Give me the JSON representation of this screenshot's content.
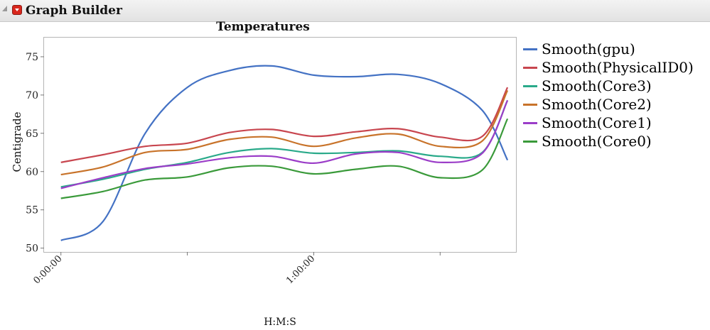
{
  "window": {
    "title": "Graph Builder"
  },
  "chart_data": {
    "type": "line",
    "title": "Temperatures",
    "xlabel": "H:M:S",
    "ylabel": "Centigrade",
    "x_tick_labels": [
      "0:00:00",
      "1:00:00"
    ],
    "y_ticks": [
      50,
      55,
      60,
      65,
      70,
      75
    ],
    "ylim": [
      49.5,
      77.5
    ],
    "xlim_minutes": [
      -4,
      108
    ],
    "grid": false,
    "legend_position": "right",
    "x_minutes": [
      0,
      10,
      20,
      30,
      40,
      50,
      60,
      70,
      80,
      90,
      100,
      106
    ],
    "series": [
      {
        "name": "Smooth(gpu)",
        "color": "#4472c4",
        "values": [
          51.0,
          53.5,
          65.0,
          71.0,
          73.2,
          73.8,
          72.6,
          72.4,
          72.7,
          71.5,
          68.0,
          61.5
        ]
      },
      {
        "name": "Smooth(PhysicalID0)",
        "color": "#c8464f",
        "values": [
          61.2,
          62.2,
          63.3,
          63.7,
          65.1,
          65.5,
          64.6,
          65.2,
          65.6,
          64.5,
          64.6,
          71.0
        ]
      },
      {
        "name": "Smooth(Core3)",
        "color": "#2aaa8a",
        "values": [
          58.0,
          59.0,
          60.3,
          61.2,
          62.5,
          63.0,
          62.4,
          62.5,
          62.7,
          62.0,
          62.5,
          69.3
        ]
      },
      {
        "name": "Smooth(Core2)",
        "color": "#c8732a",
        "values": [
          59.6,
          60.6,
          62.5,
          62.9,
          64.2,
          64.5,
          63.3,
          64.4,
          64.9,
          63.3,
          64.0,
          70.6
        ]
      },
      {
        "name": "Smooth(Core1)",
        "color": "#9b3dc8",
        "values": [
          57.8,
          59.2,
          60.4,
          61.0,
          61.8,
          62.0,
          61.1,
          62.3,
          62.5,
          61.2,
          62.4,
          69.3
        ]
      },
      {
        "name": "Smooth(Core0)",
        "color": "#3a9a3a",
        "values": [
          56.5,
          57.4,
          58.9,
          59.3,
          60.5,
          60.7,
          59.7,
          60.3,
          60.7,
          59.2,
          60.2,
          66.9
        ]
      }
    ]
  }
}
